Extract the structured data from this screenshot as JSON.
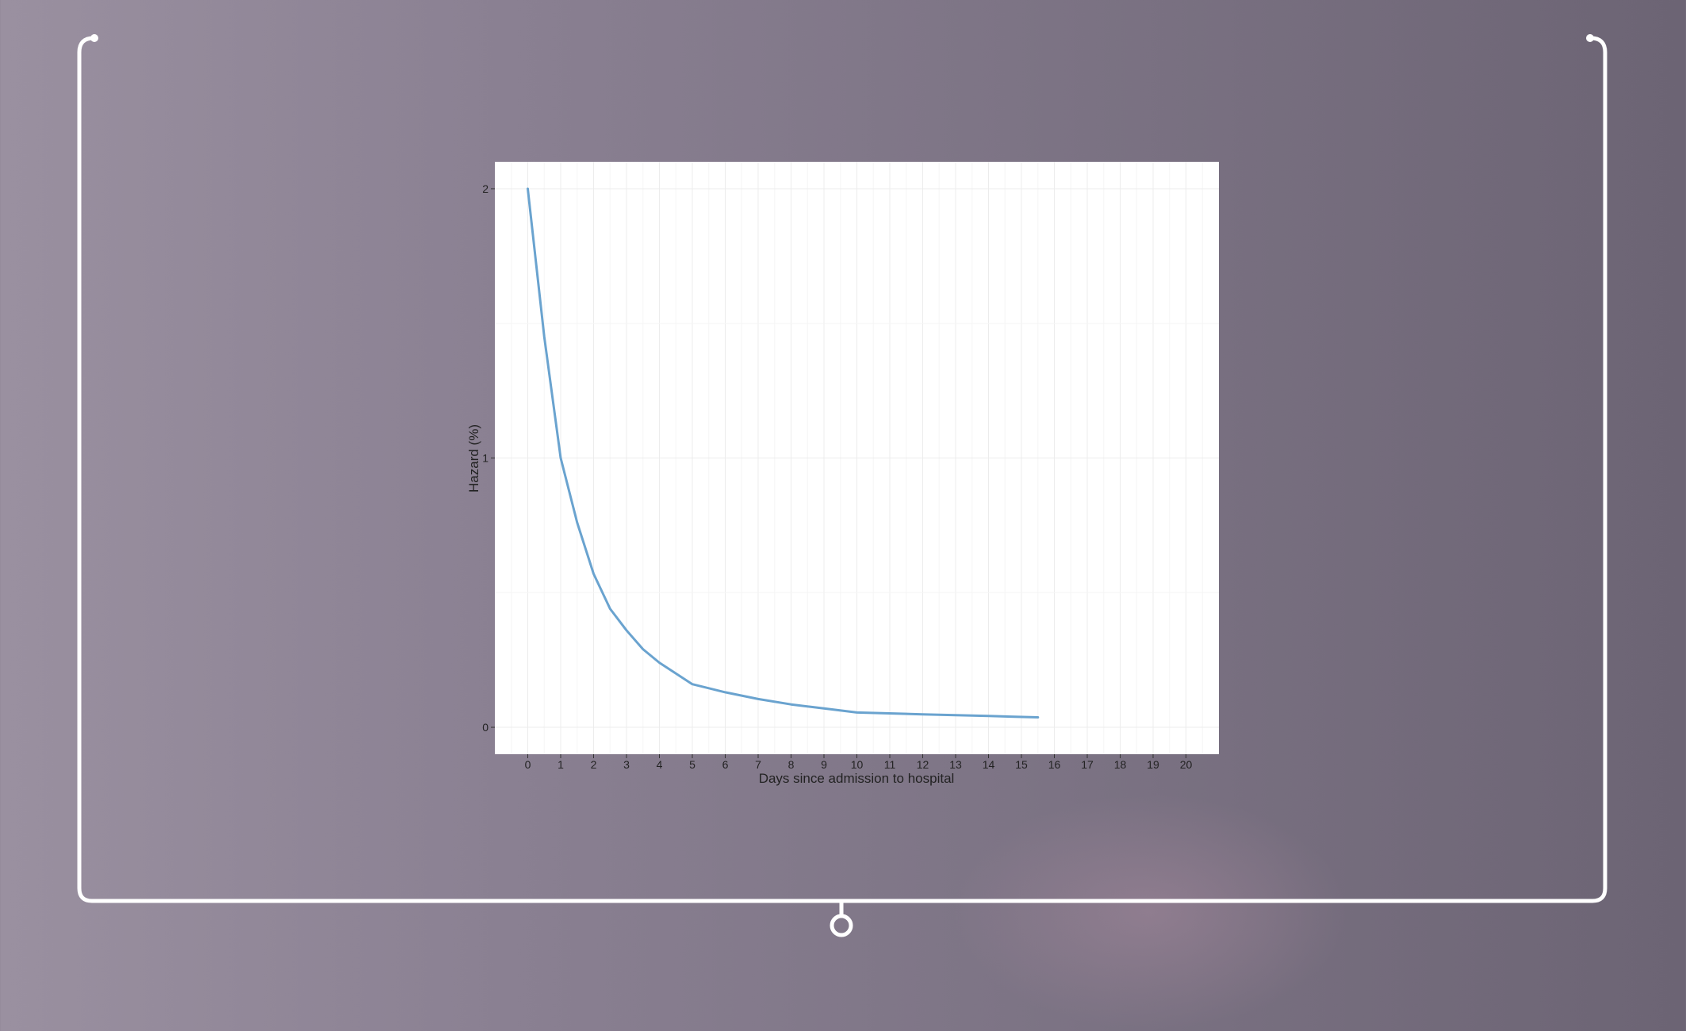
{
  "colors": {
    "frame_line": "#ffffff",
    "series": "#6aa3cf",
    "grid": "#ececec",
    "panel": "#ffffff"
  },
  "chart_data": {
    "type": "line",
    "title": "",
    "xlabel": "Days since admission to hospital",
    "ylabel": "Hazard (%)",
    "xlim": [
      -1,
      21
    ],
    "ylim": [
      -0.1,
      2.1
    ],
    "x_ticks": [
      "0",
      "1",
      "2",
      "3",
      "4",
      "5",
      "6",
      "7",
      "8",
      "9",
      "10",
      "11",
      "12",
      "13",
      "14",
      "15",
      "16",
      "17",
      "18",
      "19",
      "20"
    ],
    "y_ticks": [
      "0",
      "1",
      "2"
    ],
    "grid": true,
    "series": [
      {
        "x": [
          0,
          0.5,
          1,
          1.5,
          2,
          2.5,
          3,
          3.5,
          4,
          5,
          6,
          7,
          8,
          9,
          10,
          12,
          14,
          15.5
        ],
        "y": [
          2.0,
          1.45,
          1.0,
          0.76,
          0.57,
          0.44,
          0.36,
          0.29,
          0.24,
          0.16,
          0.13,
          0.105,
          0.085,
          0.07,
          0.055,
          0.048,
          0.042,
          0.037
        ]
      }
    ]
  }
}
